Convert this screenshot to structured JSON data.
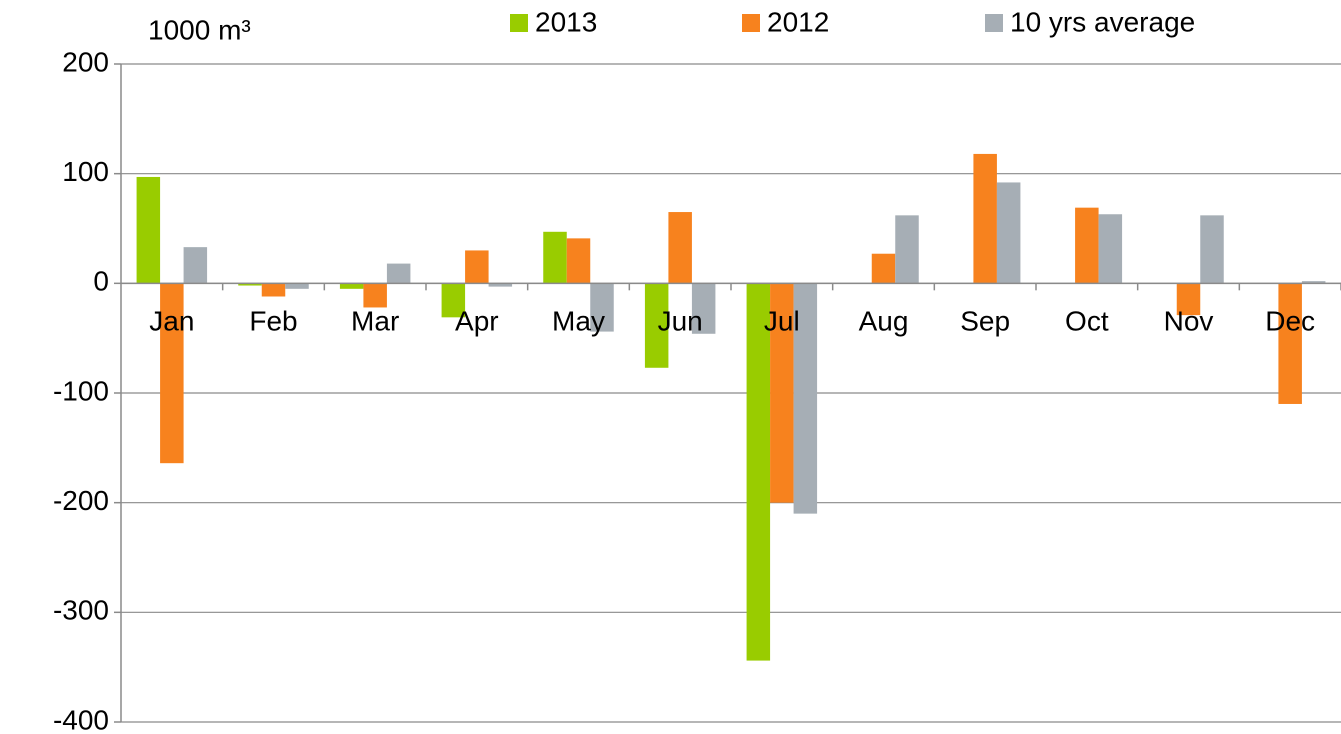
{
  "chart_data": {
    "type": "bar",
    "y_label": "1000 m³",
    "categories": [
      "Jan",
      "Feb",
      "Mar",
      "Apr",
      "May",
      "Jun",
      "Jul",
      "Aug",
      "Sep",
      "Oct",
      "Nov",
      "Dec"
    ],
    "series": [
      {
        "name": "2013",
        "color": "#99cc00",
        "values": [
          97,
          -2,
          -5,
          -31,
          47,
          -77,
          -344,
          null,
          null,
          null,
          null,
          null
        ]
      },
      {
        "name": "2012",
        "color": "#f7821e",
        "values": [
          -164,
          -12,
          -22,
          30,
          41,
          65,
          -200,
          27,
          118,
          69,
          -29,
          -110
        ]
      },
      {
        "name": "10 yrs average",
        "color": "#a6aeb5",
        "values": [
          33,
          -5,
          18,
          -3,
          -44,
          -46,
          -210,
          62,
          92,
          63,
          62,
          2
        ]
      }
    ],
    "ylim": [
      -400,
      200
    ],
    "yticks": [
      -400,
      -300,
      -200,
      -100,
      0,
      100,
      200
    ],
    "grid": true
  }
}
